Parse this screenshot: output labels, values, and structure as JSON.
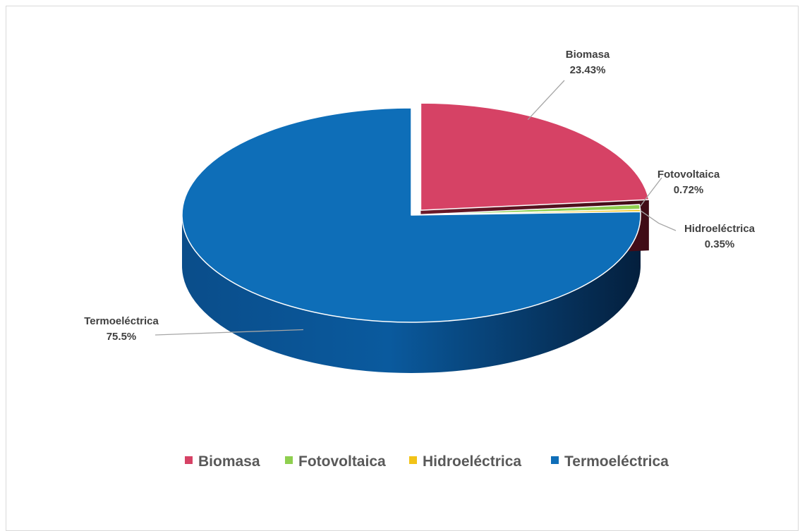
{
  "chart_data": {
    "type": "pie",
    "title": "",
    "categories": [
      "Biomasa",
      "Fotovoltaica",
      "Hidroeléctrica",
      "Termoeléctrica"
    ],
    "values": [
      23.43,
      0.72,
      0.35,
      75.5
    ],
    "value_labels": [
      "23.43%",
      "0.72%",
      "0.35%",
      "75.5%"
    ],
    "colors": [
      "#d64265",
      "#8fcf4f",
      "#f2c318",
      "#0e6eb8"
    ],
    "exploded": [
      "Biomasa"
    ],
    "style": "3d",
    "legend": {
      "position": "bottom",
      "entries": [
        "Biomasa",
        "Fotovoltaica",
        "Hidroeléctrica",
        "Termoeléctrica"
      ]
    }
  }
}
